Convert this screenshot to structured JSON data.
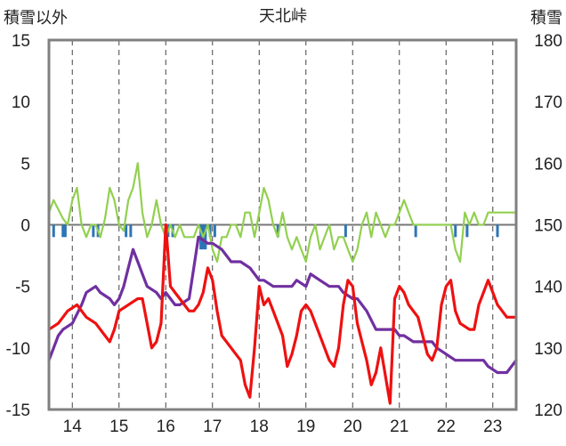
{
  "chart_data": {
    "type": "line",
    "title": "天北峠",
    "y_left_label": "積雪以外",
    "y_right_label": "積雪",
    "y_left_ticks": [
      "15",
      "10",
      "5",
      "0",
      "-5",
      "-10",
      "-15"
    ],
    "y_right_ticks": [
      "180",
      "170",
      "160",
      "150",
      "140",
      "130",
      "120"
    ],
    "x_ticks": [
      "14",
      "15",
      "16",
      "17",
      "18",
      "19",
      "20",
      "21",
      "22",
      "23"
    ],
    "x_range": [
      13.5,
      23.5
    ],
    "y_left_range": [
      -15,
      15
    ],
    "y_right_range": [
      120,
      180
    ],
    "grid": "dashed vertical lines at day boundaries",
    "colors": {
      "temperature": "#ee1111",
      "wind": "#92d050",
      "precip": "#2e75b6",
      "snow_depth": "#7030a0"
    },
    "series": [
      {
        "key": "temperature",
        "axis": "left",
        "x": [
          13.5,
          13.7,
          13.9,
          14.1,
          14.3,
          14.5,
          14.7,
          14.8,
          14.9,
          15.0,
          15.2,
          15.4,
          15.5,
          15.6,
          15.7,
          15.8,
          15.9,
          16.0,
          16.1,
          16.2,
          16.4,
          16.5,
          16.6,
          16.7,
          16.8,
          16.9,
          17.0,
          17.1,
          17.2,
          17.4,
          17.6,
          17.7,
          17.8,
          17.9,
          18.0,
          18.1,
          18.2,
          18.3,
          18.5,
          18.6,
          18.7,
          18.8,
          18.9,
          19.0,
          19.1,
          19.3,
          19.5,
          19.6,
          19.7,
          19.8,
          19.9,
          20.0,
          20.1,
          20.2,
          20.3,
          20.4,
          20.5,
          20.6,
          20.8,
          20.9,
          21.0,
          21.1,
          21.2,
          21.4,
          21.5,
          21.6,
          21.7,
          21.8,
          21.9,
          22.0,
          22.1,
          22.2,
          22.3,
          22.5,
          22.6,
          22.7,
          22.8,
          22.9,
          23.0,
          23.1,
          23.2,
          23.3,
          23.5
        ],
        "y": [
          -8.5,
          -8.0,
          -7.0,
          -6.5,
          -7.5,
          -8.0,
          -9.0,
          -9.5,
          -8.5,
          -7.0,
          -6.5,
          -6.0,
          -6.0,
          -8.0,
          -10.0,
          -9.5,
          -8.0,
          0,
          -5.0,
          -5.5,
          -6.5,
          -7.0,
          -7.0,
          -6.5,
          -5.5,
          -3.5,
          -4.5,
          -7.0,
          -9.0,
          -10.0,
          -11.0,
          -13.0,
          -14.0,
          -10.0,
          -5.0,
          -6.5,
          -6.0,
          -7.0,
          -9.0,
          -11.5,
          -10.5,
          -9.0,
          -7.0,
          -6.5,
          -7.0,
          -9.0,
          -11.0,
          -11.5,
          -10.0,
          -6.5,
          -4.5,
          -5.0,
          -8.0,
          -9.5,
          -11.0,
          -13.0,
          -12.0,
          -10.0,
          -14.5,
          -6.0,
          -5.0,
          -5.5,
          -6.5,
          -7.5,
          -9.0,
          -10.5,
          -11.0,
          -10.0,
          -6.5,
          -5.0,
          -4.5,
          -7.0,
          -8.0,
          -8.5,
          -8.5,
          -6.5,
          -5.5,
          -4.5,
          -5.5,
          -6.5,
          -7.0,
          -7.5,
          -7.5
        ]
      },
      {
        "key": "wind",
        "axis": "left",
        "x": [
          13.5,
          13.6,
          13.8,
          13.9,
          14.0,
          14.1,
          14.2,
          14.3,
          14.4,
          14.5,
          14.6,
          14.7,
          14.8,
          14.9,
          15.0,
          15.1,
          15.2,
          15.3,
          15.4,
          15.5,
          15.6,
          15.7,
          15.8,
          15.9,
          16.0,
          16.1,
          16.2,
          16.3,
          16.4,
          16.5,
          16.6,
          16.7,
          16.8,
          16.9,
          17.0,
          17.1,
          17.2,
          17.3,
          17.4,
          17.5,
          17.6,
          17.7,
          17.8,
          17.9,
          18.0,
          18.1,
          18.2,
          18.3,
          18.4,
          18.5,
          18.6,
          18.7,
          18.8,
          18.9,
          19.0,
          19.1,
          19.2,
          19.3,
          19.4,
          19.5,
          19.6,
          19.7,
          19.8,
          19.9,
          20.0,
          20.1,
          20.2,
          20.3,
          20.4,
          20.5,
          20.6,
          20.7,
          20.8,
          20.9,
          21.0,
          21.1,
          21.2,
          21.3,
          21.4,
          21.5,
          21.6,
          21.7,
          21.8,
          21.9,
          22.0,
          22.1,
          22.2,
          22.3,
          22.4,
          22.5,
          22.6,
          22.7,
          22.8,
          22.9,
          23.0,
          23.1,
          23.2,
          23.3,
          23.4,
          23.5
        ],
        "y": [
          1,
          2,
          0.5,
          0,
          2,
          3,
          0,
          -1,
          0,
          0,
          -1,
          0.5,
          3,
          2,
          0,
          -0.5,
          2,
          3,
          5,
          1,
          -1,
          0,
          2,
          0,
          -1,
          0,
          -1,
          0,
          -1,
          -1,
          -1,
          0,
          -1,
          0,
          -2,
          -3,
          -1,
          -1,
          0,
          0,
          -1,
          1,
          1,
          -1,
          1,
          3,
          2,
          0,
          -1,
          1,
          -1,
          -2,
          -1,
          -2,
          -3,
          -1,
          0,
          -2,
          -1,
          0,
          -2,
          -1,
          -1,
          -2,
          -3,
          -2,
          0,
          1,
          -1,
          1,
          0,
          -1,
          0,
          0,
          1,
          2,
          1,
          0,
          0,
          0,
          0,
          0,
          0,
          0,
          0,
          0,
          -2,
          -3,
          1,
          0,
          1,
          0,
          0,
          1,
          1,
          1,
          1,
          1,
          1,
          1
        ]
      },
      {
        "key": "snow_depth",
        "axis": "right",
        "x": [
          13.5,
          13.7,
          13.8,
          14.0,
          14.2,
          14.3,
          14.5,
          14.6,
          14.8,
          14.9,
          15.0,
          15.1,
          15.2,
          15.3,
          15.4,
          15.5,
          15.6,
          15.8,
          15.9,
          16.0,
          16.2,
          16.3,
          16.5,
          16.7,
          16.9,
          17.0,
          17.2,
          17.4,
          17.6,
          17.8,
          18.0,
          18.1,
          18.3,
          18.5,
          18.7,
          18.8,
          19.0,
          19.1,
          19.3,
          19.5,
          19.7,
          19.8,
          20.0,
          20.1,
          20.3,
          20.5,
          20.7,
          20.9,
          21.0,
          21.1,
          21.3,
          21.5,
          21.7,
          21.8,
          22.0,
          22.2,
          22.4,
          22.6,
          22.8,
          22.9,
          23.1,
          23.3,
          23.5
        ],
        "y": [
          128,
          132,
          133,
          134,
          137,
          139,
          140,
          139,
          138,
          137,
          138,
          140,
          143,
          146,
          144,
          142,
          140,
          139,
          138,
          139,
          137,
          137,
          138,
          148,
          147,
          147,
          146,
          144,
          144,
          143,
          141,
          141,
          140,
          140,
          140,
          141,
          140,
          142,
          141,
          140,
          140,
          139,
          138,
          138,
          136,
          133,
          133,
          133,
          132,
          132,
          131,
          131,
          131,
          130,
          129,
          128,
          128,
          128,
          128,
          127,
          126,
          126,
          128
        ]
      }
    ],
    "bars": {
      "key": "precip",
      "axis": "left",
      "x": [
        13.6,
        13.8,
        13.85,
        14.45,
        14.55,
        15.15,
        15.25,
        16.05,
        16.15,
        16.75,
        16.8,
        16.85,
        16.95,
        17.05,
        18.4,
        19.85,
        21.35,
        22.2,
        22.45,
        23.1
      ],
      "y": [
        -1,
        -1,
        -1,
        -1,
        -1,
        -1,
        -1,
        -1,
        -1,
        -2,
        -2,
        -2,
        -1,
        -1,
        -1,
        -1,
        -1,
        -1,
        -1,
        -1
      ]
    }
  }
}
